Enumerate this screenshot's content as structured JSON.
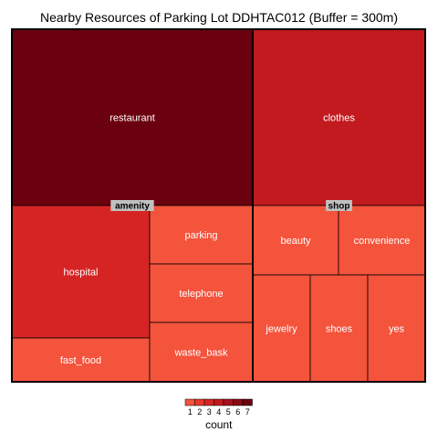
{
  "chart_data": {
    "type": "treemap",
    "title": "Nearby Resources of Parking Lot DDHTAC012 (Buffer = 300m)",
    "groups": [
      {
        "name": "amenity",
        "items": [
          {
            "label": "restaurant",
            "count": 7
          },
          {
            "label": "hospital",
            "count": 3
          },
          {
            "label": "fast_food",
            "count": 1
          },
          {
            "label": "parking",
            "count": 1
          },
          {
            "label": "telephone",
            "count": 1
          },
          {
            "label": "waste_bask",
            "count": 1
          }
        ]
      },
      {
        "name": "shop",
        "items": [
          {
            "label": "clothes",
            "count": 4
          },
          {
            "label": "beauty",
            "count": 1
          },
          {
            "label": "convenience",
            "count": 1
          },
          {
            "label": "jewelry",
            "count": 1
          },
          {
            "label": "shoes",
            "count": 1
          },
          {
            "label": "yes",
            "count": 1
          }
        ]
      }
    ],
    "legend": {
      "title": "count",
      "ticks": [
        "1",
        "2",
        "3",
        "4",
        "5",
        "6",
        "7"
      ],
      "colors": [
        "#f4533c",
        "#e63a2e",
        "#d62424",
        "#c21a1f",
        "#a8111a",
        "#8a0a13",
        "#6b000e"
      ]
    }
  }
}
